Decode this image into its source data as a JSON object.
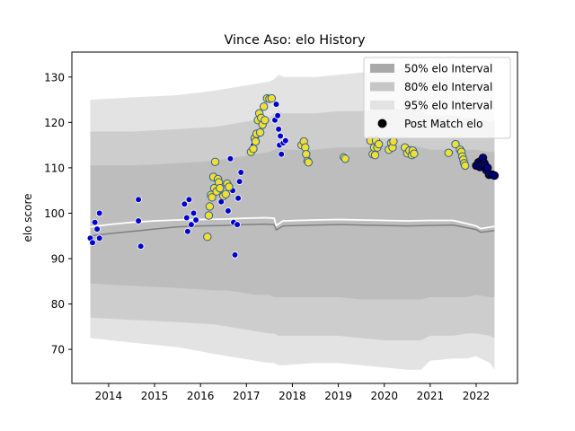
{
  "chart_data": {
    "type": "scatter",
    "title": "Vince Aso: elo History",
    "xlabel": "",
    "ylabel": "elo score",
    "xlim": [
      2013.2,
      2022.9
    ],
    "ylim": [
      62.5,
      135.5
    ],
    "x_ticks": [
      2014,
      2015,
      2016,
      2017,
      2018,
      2019,
      2020,
      2021,
      2022
    ],
    "y_ticks": [
      70,
      80,
      90,
      100,
      110,
      120,
      130
    ],
    "grid": false,
    "legend_position": "top-right",
    "legend": [
      {
        "label": "50% elo Interval",
        "color": "#a9a9a9"
      },
      {
        "label": "80% elo Interval",
        "color": "#c6c6c6"
      },
      {
        "label": "95% elo Interval",
        "color": "#e3e3e3"
      },
      {
        "label": "Post Match elo",
        "color": "#000000"
      }
    ],
    "band_x": [
      2013.6,
      2014.5,
      2015.5,
      2016.3,
      2016.6,
      2016.9,
      2017.2,
      2017.5,
      2017.6,
      2017.7,
      2017.8,
      2018.5,
      2019.0,
      2019.5,
      2020.0,
      2020.5,
      2020.8,
      2021.0,
      2021.5,
      2021.8,
      2022.0,
      2022.3,
      2022.4
    ],
    "band_95_upper": [
      125,
      125.5,
      126,
      127,
      127.5,
      128,
      128.5,
      129,
      129.5,
      130.5,
      130,
      130,
      130.5,
      131,
      131.5,
      132,
      131,
      130,
      130,
      129.5,
      129.5,
      128,
      129
    ],
    "band_95_lower": [
      72.5,
      71.5,
      70.5,
      69,
      68.5,
      68,
      67.5,
      67,
      67,
      66.5,
      66.5,
      67,
      67,
      66.5,
      66,
      65.5,
      65.5,
      67.5,
      68,
      68,
      68.5,
      67,
      65.5
    ],
    "band_80_upper": [
      118,
      118,
      118.5,
      119,
      119.5,
      120,
      120.5,
      121,
      122,
      122.5,
      122,
      122,
      122.5,
      122.5,
      123,
      123,
      122.5,
      121.5,
      121.5,
      121,
      121,
      120,
      120.5
    ],
    "band_80_lower": [
      77,
      76.5,
      76,
      75.5,
      75,
      74.5,
      74,
      73.5,
      73.5,
      73,
      73,
      73,
      73,
      72.5,
      72,
      72,
      72,
      73,
      73,
      73.5,
      73.5,
      73,
      72.5
    ],
    "band_50_upper": [
      110.5,
      110.5,
      111,
      111.5,
      112,
      112.5,
      113,
      113.5,
      114,
      114.5,
      114,
      114,
      114.5,
      114.5,
      115,
      115,
      114.5,
      114,
      114,
      114,
      114,
      113.5,
      113.5
    ],
    "band_50_lower": [
      84.5,
      84,
      83.5,
      83,
      83,
      82.5,
      82,
      82,
      81.5,
      81.5,
      81.5,
      81.5,
      81.5,
      81,
      81,
      81,
      81,
      81.5,
      81.5,
      81.5,
      82,
      81.5,
      81.5
    ],
    "median_line": {
      "x": [
        2013.6,
        2014.0,
        2014.5,
        2015.0,
        2015.5,
        2016.0,
        2016.5,
        2017.0,
        2017.4,
        2017.6,
        2017.65,
        2017.8,
        2018.5,
        2019.0,
        2019.5,
        2020.0,
        2020.5,
        2021.0,
        2021.5,
        2022.0,
        2022.1,
        2022.4
      ],
      "y": [
        95,
        95.5,
        96,
        96.5,
        97,
        97.2,
        97.3,
        97.5,
        97.6,
        97.5,
        96.3,
        97.2,
        97.4,
        97.5,
        97.4,
        97.3,
        97.2,
        97.3,
        97.4,
        96.4,
        95.8,
        96.2
      ],
      "color": "#808080"
    },
    "mean_line": {
      "x": [
        2013.6,
        2014.0,
        2014.5,
        2015.0,
        2015.5,
        2016.0,
        2016.5,
        2017.0,
        2017.4,
        2017.6,
        2017.65,
        2017.8,
        2018.5,
        2019.0,
        2019.5,
        2020.0,
        2020.5,
        2021.0,
        2021.5,
        2022.0,
        2022.1,
        2022.4
      ],
      "y": [
        97,
        97.5,
        98,
        98.3,
        98.5,
        98.6,
        98.7,
        98.9,
        99,
        98.9,
        97.3,
        98.3,
        98.5,
        98.6,
        98.5,
        98.4,
        98.3,
        98.4,
        98.4,
        97.2,
        96.6,
        97.1
      ],
      "color": "#ffffff"
    },
    "series": [
      {
        "name": "Post Match elo",
        "style": "blue",
        "fill": "#0000cc",
        "stroke": "#ffffff",
        "points": [
          [
            2013.6,
            94.5
          ],
          [
            2013.65,
            93.5
          ],
          [
            2013.7,
            98
          ],
          [
            2013.75,
            96.5
          ],
          [
            2013.8,
            100
          ],
          [
            2013.8,
            94.5
          ],
          [
            2014.65,
            103
          ],
          [
            2014.65,
            98.3
          ],
          [
            2014.7,
            92.7
          ],
          [
            2015.65,
            102
          ],
          [
            2015.7,
            99
          ],
          [
            2015.72,
            96
          ],
          [
            2015.75,
            103
          ],
          [
            2015.8,
            97.5
          ],
          [
            2015.85,
            100
          ],
          [
            2015.9,
            98.5
          ],
          [
            2016.45,
            102.5
          ],
          [
            2016.55,
            104.5
          ],
          [
            2016.6,
            100.5
          ],
          [
            2016.65,
            112
          ],
          [
            2016.7,
            105
          ],
          [
            2016.72,
            98
          ],
          [
            2016.75,
            90.8
          ],
          [
            2016.8,
            97.5
          ],
          [
            2016.82,
            103.3
          ],
          [
            2016.85,
            107
          ],
          [
            2016.88,
            109
          ],
          [
            2017.1,
            113.5
          ],
          [
            2017.15,
            115
          ],
          [
            2017.55,
            125
          ],
          [
            2017.62,
            120.5
          ],
          [
            2017.65,
            124
          ],
          [
            2017.68,
            121.5
          ],
          [
            2017.7,
            118.5
          ],
          [
            2017.72,
            115
          ],
          [
            2017.74,
            117
          ],
          [
            2017.76,
            113
          ],
          [
            2017.8,
            115.5
          ],
          [
            2017.85,
            116
          ],
          [
            2018.2,
            115.5
          ],
          [
            2019.1,
            112
          ],
          [
            2019.15,
            112.5
          ]
        ]
      },
      {
        "name": "",
        "style": "yellow",
        "fill": "#f2df2e",
        "stroke": "#2f5f9f",
        "points": [
          [
            2016.15,
            94.8
          ],
          [
            2016.18,
            99.5
          ],
          [
            2016.2,
            101.5
          ],
          [
            2016.23,
            104
          ],
          [
            2016.25,
            103.5
          ],
          [
            2016.28,
            108
          ],
          [
            2016.3,
            105.5
          ],
          [
            2016.32,
            111.3
          ],
          [
            2016.35,
            104.8
          ],
          [
            2016.38,
            107.5
          ],
          [
            2016.4,
            106.8
          ],
          [
            2016.42,
            105.5
          ],
          [
            2016.5,
            103.8
          ],
          [
            2016.55,
            104.2
          ],
          [
            2016.58,
            106.5
          ],
          [
            2016.62,
            105.8
          ],
          [
            2017.1,
            113.5
          ],
          [
            2017.15,
            114.2
          ],
          [
            2017.18,
            116.5
          ],
          [
            2017.2,
            115.8
          ],
          [
            2017.22,
            117.5
          ],
          [
            2017.25,
            120.5
          ],
          [
            2017.28,
            122
          ],
          [
            2017.3,
            117.8
          ],
          [
            2017.32,
            121
          ],
          [
            2017.35,
            119.5
          ],
          [
            2017.38,
            123.5
          ],
          [
            2017.4,
            120.5
          ],
          [
            2017.45,
            125.3
          ],
          [
            2017.5,
            125.2
          ],
          [
            2017.55,
            125.3
          ],
          [
            2018.2,
            115
          ],
          [
            2018.25,
            115.8
          ],
          [
            2018.28,
            114.5
          ],
          [
            2018.3,
            113
          ],
          [
            2018.33,
            111.5
          ],
          [
            2018.35,
            111.2
          ],
          [
            2019.12,
            112.3
          ],
          [
            2019.15,
            112
          ],
          [
            2019.7,
            116
          ],
          [
            2019.75,
            113
          ],
          [
            2019.78,
            114.5
          ],
          [
            2019.8,
            112.8
          ],
          [
            2019.82,
            116
          ],
          [
            2019.85,
            114.5
          ],
          [
            2019.88,
            115.2
          ],
          [
            2020.1,
            114
          ],
          [
            2020.15,
            115.5
          ],
          [
            2020.18,
            114.5
          ],
          [
            2020.2,
            115.8
          ],
          [
            2020.45,
            114.5
          ],
          [
            2020.5,
            113.2
          ],
          [
            2020.55,
            113.8
          ],
          [
            2020.6,
            112.8
          ],
          [
            2020.62,
            113.8
          ],
          [
            2020.65,
            113.1
          ],
          [
            2021.4,
            113.3
          ],
          [
            2021.55,
            115.2
          ],
          [
            2021.65,
            114
          ],
          [
            2021.68,
            113.5
          ],
          [
            2021.7,
            112.5
          ],
          [
            2021.72,
            111.8
          ],
          [
            2021.74,
            111
          ],
          [
            2021.76,
            110.5
          ]
        ]
      },
      {
        "name": "",
        "style": "dark",
        "fill": "#000080",
        "stroke": "#000000",
        "points": [
          [
            2022.0,
            110.5
          ],
          [
            2022.05,
            111.2
          ],
          [
            2022.08,
            110.2
          ],
          [
            2022.1,
            111.5
          ],
          [
            2022.12,
            110.8
          ],
          [
            2022.15,
            112.2
          ],
          [
            2022.18,
            111
          ],
          [
            2022.2,
            110.5
          ],
          [
            2022.22,
            109.5
          ],
          [
            2022.25,
            110
          ],
          [
            2022.28,
            108.5
          ],
          [
            2022.35,
            108.5
          ],
          [
            2022.4,
            108.3
          ]
        ]
      }
    ]
  }
}
